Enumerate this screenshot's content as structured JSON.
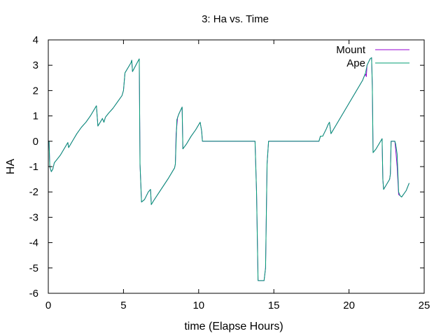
{
  "chart_data": {
    "type": "line",
    "title": "3: Ha vs. Time",
    "xlabel": "time (Elapse Hours)",
    "ylabel": "HA",
    "xlim": [
      0,
      25
    ],
    "ylim": [
      -6,
      4
    ],
    "xticks": [
      0,
      5,
      10,
      15,
      20,
      25
    ],
    "yticks": [
      -6,
      -5,
      -4,
      -3,
      -2,
      -1,
      0,
      1,
      2,
      3,
      4
    ],
    "grid": false,
    "legend_position": "top-right",
    "series": [
      {
        "name": "Mount",
        "color": "#9400d3",
        "points": [
          [
            0,
            0
          ],
          [
            0.05,
            0
          ],
          [
            0.1,
            -1.0
          ],
          [
            0.2,
            -1.2
          ],
          [
            0.3,
            -1.1
          ],
          [
            0.4,
            -0.85
          ],
          [
            0.6,
            -0.7
          ],
          [
            0.8,
            -0.55
          ],
          [
            1.0,
            -0.35
          ],
          [
            1.1,
            -0.25
          ],
          [
            1.2,
            -0.15
          ],
          [
            1.3,
            -0.05
          ],
          [
            1.35,
            -0.25
          ],
          [
            1.45,
            -0.15
          ],
          [
            1.7,
            0.1
          ],
          [
            1.9,
            0.3
          ],
          [
            2.2,
            0.55
          ],
          [
            2.5,
            0.75
          ],
          [
            2.8,
            1.0
          ],
          [
            3.0,
            1.2
          ],
          [
            3.2,
            1.4
          ],
          [
            3.3,
            0.6
          ],
          [
            3.5,
            0.8
          ],
          [
            3.6,
            0.9
          ],
          [
            3.7,
            0.75
          ],
          [
            3.8,
            0.95
          ],
          [
            4.0,
            1.1
          ],
          [
            4.3,
            1.3
          ],
          [
            4.6,
            1.55
          ],
          [
            4.9,
            1.8
          ],
          [
            5.0,
            2.0
          ],
          [
            5.1,
            2.7
          ],
          [
            5.3,
            2.9
          ],
          [
            5.5,
            3.1
          ],
          [
            5.55,
            3.2
          ],
          [
            5.6,
            2.75
          ],
          [
            6.0,
            3.2
          ],
          [
            6.05,
            3.25
          ],
          [
            6.1,
            -0.9
          ],
          [
            6.2,
            -2.4
          ],
          [
            6.4,
            -2.3
          ],
          [
            6.65,
            -2.0
          ],
          [
            6.8,
            -1.9
          ],
          [
            6.85,
            -2.5
          ],
          [
            7.0,
            -2.35
          ],
          [
            7.5,
            -1.9
          ],
          [
            8.0,
            -1.45
          ],
          [
            8.4,
            -1.05
          ],
          [
            8.45,
            -0.9
          ],
          [
            8.5,
            0.3
          ],
          [
            8.6,
            0.95
          ],
          [
            8.7,
            1.1
          ],
          [
            8.9,
            1.35
          ],
          [
            8.95,
            -0.3
          ],
          [
            9.2,
            -0.1
          ],
          [
            9.5,
            0.2
          ],
          [
            9.8,
            0.45
          ],
          [
            10.0,
            0.65
          ],
          [
            10.1,
            0.75
          ],
          [
            10.2,
            0.4
          ],
          [
            10.25,
            0
          ],
          [
            13.75,
            0
          ],
          [
            13.85,
            -2.0
          ],
          [
            13.95,
            -5.5
          ],
          [
            14.05,
            -5.5
          ],
          [
            14.35,
            -5.5
          ],
          [
            14.45,
            -5.0
          ],
          [
            14.55,
            -0.9
          ],
          [
            14.65,
            0
          ],
          [
            17.2,
            0
          ],
          [
            18.0,
            0
          ],
          [
            18.1,
            0.2
          ],
          [
            18.25,
            0.2
          ],
          [
            18.5,
            0.5
          ],
          [
            18.6,
            0.65
          ],
          [
            18.7,
            0.75
          ],
          [
            18.8,
            0.3
          ],
          [
            19.0,
            0.5
          ],
          [
            19.3,
            0.8
          ],
          [
            19.6,
            1.1
          ],
          [
            20.0,
            1.5
          ],
          [
            20.3,
            1.8
          ],
          [
            20.6,
            2.1
          ],
          [
            20.9,
            2.4
          ],
          [
            21.0,
            2.55
          ],
          [
            21.1,
            2.65
          ],
          [
            21.15,
            2.55
          ],
          [
            21.2,
            3.0
          ],
          [
            21.4,
            3.25
          ],
          [
            21.5,
            3.3
          ],
          [
            21.55,
            2.2
          ],
          [
            21.6,
            -0.45
          ],
          [
            21.8,
            -0.3
          ],
          [
            22.0,
            -0.1
          ],
          [
            22.2,
            0.1
          ],
          [
            22.25,
            -1.5
          ],
          [
            22.3,
            -1.9
          ],
          [
            22.5,
            -1.7
          ],
          [
            22.7,
            -1.5
          ],
          [
            22.75,
            -1.3
          ],
          [
            22.8,
            0
          ],
          [
            23.05,
            0
          ],
          [
            23.1,
            -0.3
          ],
          [
            23.2,
            -1.0
          ],
          [
            23.3,
            -2.1
          ],
          [
            23.4,
            -2.15
          ],
          [
            23.5,
            -2.2
          ],
          [
            23.8,
            -1.95
          ],
          [
            24.0,
            -1.65
          ]
        ]
      },
      {
        "name": "Ape",
        "color": "#009e73",
        "points": [
          [
            0,
            0
          ],
          [
            0.05,
            0
          ],
          [
            0.1,
            -1.0
          ],
          [
            0.2,
            -1.2
          ],
          [
            0.3,
            -1.1
          ],
          [
            0.4,
            -0.85
          ],
          [
            0.6,
            -0.7
          ],
          [
            0.8,
            -0.55
          ],
          [
            1.0,
            -0.35
          ],
          [
            1.1,
            -0.25
          ],
          [
            1.2,
            -0.15
          ],
          [
            1.3,
            -0.05
          ],
          [
            1.35,
            -0.25
          ],
          [
            1.45,
            -0.15
          ],
          [
            1.7,
            0.1
          ],
          [
            1.9,
            0.3
          ],
          [
            2.2,
            0.55
          ],
          [
            2.5,
            0.75
          ],
          [
            2.8,
            1.0
          ],
          [
            3.0,
            1.2
          ],
          [
            3.2,
            1.4
          ],
          [
            3.3,
            0.6
          ],
          [
            3.5,
            0.8
          ],
          [
            3.6,
            0.9
          ],
          [
            3.7,
            0.75
          ],
          [
            3.8,
            0.95
          ],
          [
            4.0,
            1.1
          ],
          [
            4.3,
            1.3
          ],
          [
            4.6,
            1.55
          ],
          [
            4.9,
            1.8
          ],
          [
            5.0,
            2.0
          ],
          [
            5.1,
            2.7
          ],
          [
            5.3,
            2.9
          ],
          [
            5.5,
            3.1
          ],
          [
            5.55,
            3.2
          ],
          [
            5.6,
            2.75
          ],
          [
            6.0,
            3.2
          ],
          [
            6.05,
            3.25
          ],
          [
            6.1,
            -0.9
          ],
          [
            6.2,
            -2.4
          ],
          [
            6.4,
            -2.3
          ],
          [
            6.65,
            -2.0
          ],
          [
            6.8,
            -1.9
          ],
          [
            6.85,
            -2.5
          ],
          [
            7.0,
            -2.35
          ],
          [
            7.5,
            -1.9
          ],
          [
            8.0,
            -1.45
          ],
          [
            8.4,
            -1.05
          ],
          [
            8.45,
            -0.9
          ],
          [
            8.55,
            0.85
          ],
          [
            8.7,
            1.1
          ],
          [
            8.9,
            1.35
          ],
          [
            8.95,
            -0.3
          ],
          [
            9.2,
            -0.1
          ],
          [
            9.5,
            0.2
          ],
          [
            9.8,
            0.45
          ],
          [
            10.0,
            0.65
          ],
          [
            10.1,
            0.75
          ],
          [
            10.2,
            0.4
          ],
          [
            10.25,
            0
          ],
          [
            13.75,
            0
          ],
          [
            13.85,
            -2.0
          ],
          [
            13.95,
            -5.5
          ],
          [
            14.05,
            -5.5
          ],
          [
            14.35,
            -5.5
          ],
          [
            14.45,
            -5.0
          ],
          [
            14.55,
            -0.9
          ],
          [
            14.65,
            0
          ],
          [
            17.2,
            0
          ],
          [
            18.0,
            0
          ],
          [
            18.1,
            0.2
          ],
          [
            18.25,
            0.2
          ],
          [
            18.5,
            0.5
          ],
          [
            18.6,
            0.65
          ],
          [
            18.7,
            0.75
          ],
          [
            18.8,
            0.3
          ],
          [
            19.0,
            0.5
          ],
          [
            19.3,
            0.8
          ],
          [
            19.6,
            1.1
          ],
          [
            20.0,
            1.5
          ],
          [
            20.3,
            1.8
          ],
          [
            20.6,
            2.1
          ],
          [
            20.9,
            2.4
          ],
          [
            21.0,
            2.55
          ],
          [
            21.1,
            2.7
          ],
          [
            21.2,
            3.0
          ],
          [
            21.4,
            3.25
          ],
          [
            21.5,
            3.3
          ],
          [
            21.55,
            2.2
          ],
          [
            21.6,
            -0.45
          ],
          [
            21.8,
            -0.3
          ],
          [
            22.0,
            -0.1
          ],
          [
            22.2,
            0.1
          ],
          [
            22.25,
            -1.5
          ],
          [
            22.3,
            -1.9
          ],
          [
            22.5,
            -1.7
          ],
          [
            22.7,
            -1.5
          ],
          [
            22.75,
            -1.3
          ],
          [
            22.8,
            0
          ],
          [
            23.05,
            0
          ],
          [
            23.1,
            -0.1
          ],
          [
            23.2,
            -0.5
          ],
          [
            23.3,
            -2.0
          ],
          [
            23.4,
            -2.15
          ],
          [
            23.5,
            -2.2
          ],
          [
            23.8,
            -1.95
          ],
          [
            24.0,
            -1.65
          ]
        ]
      }
    ]
  }
}
